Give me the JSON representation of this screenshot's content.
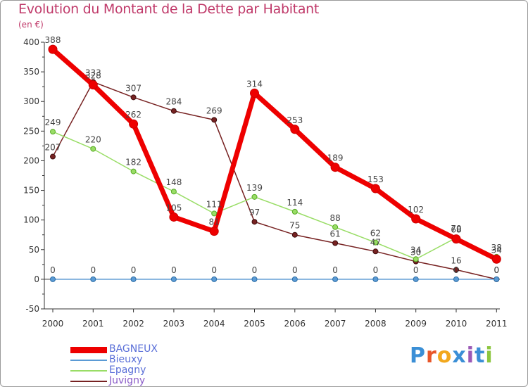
{
  "title": "Evolution du Montant de la Dette par Habitant",
  "unit": "(en €)",
  "logo": "Proxiti",
  "chart_data": {
    "type": "line",
    "x": [
      "2000",
      "2001",
      "2002",
      "2003",
      "2004",
      "2005",
      "2006",
      "2007",
      "2008",
      "2009",
      "2010",
      "2011"
    ],
    "ylim": [
      -50,
      400
    ],
    "yticks": [
      -50,
      0,
      50,
      100,
      150,
      200,
      250,
      300,
      350,
      400
    ],
    "grid": false,
    "legend_position": "bottom-left",
    "series": [
      {
        "name": "BAGNEUX",
        "color": "#ee0000",
        "values": [
          388,
          328,
          262,
          105,
          81,
          314,
          253,
          189,
          153,
          102,
          68,
          34
        ]
      },
      {
        "name": "Bieuxy",
        "color": "#5b9bd5",
        "values": [
          0,
          0,
          0,
          0,
          0,
          0,
          0,
          0,
          0,
          0,
          0,
          0
        ]
      },
      {
        "name": "Epagny",
        "color": "#99dd66",
        "values": [
          249,
          220,
          182,
          148,
          111,
          139,
          114,
          88,
          62,
          34,
          70,
          38
        ]
      },
      {
        "name": "Juvigny",
        "color": "#772222",
        "values": [
          207,
          333,
          307,
          284,
          269,
          97,
          75,
          61,
          47,
          30,
          16,
          0
        ]
      }
    ]
  }
}
